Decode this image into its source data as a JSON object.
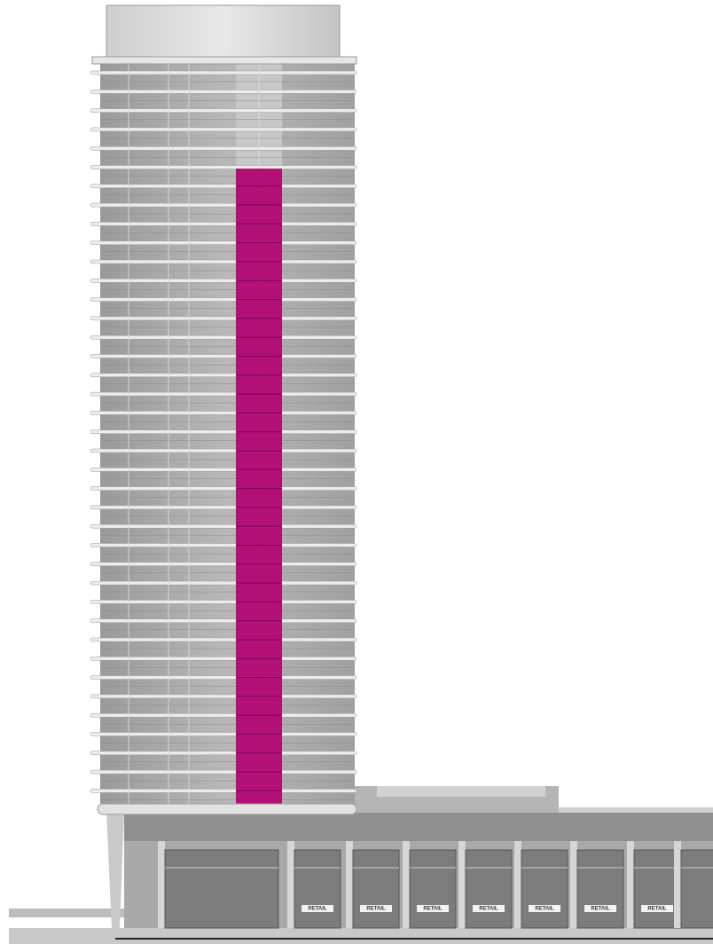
{
  "signs": [
    "RETAIL",
    "RETAIL",
    "RETAIL",
    "RETAIL",
    "RETAIL",
    "RETAIL",
    "RETAIL"
  ]
}
